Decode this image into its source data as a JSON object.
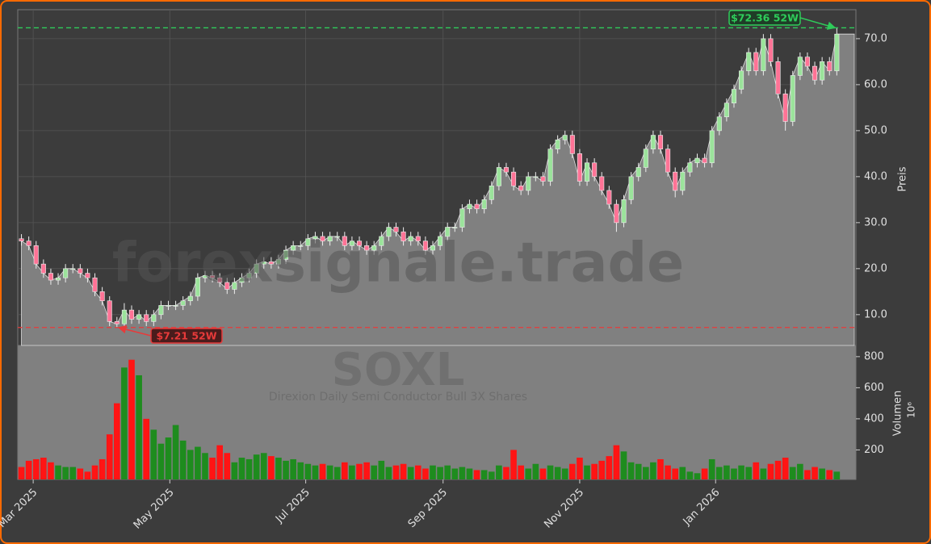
{
  "chart_data": {
    "type": "candlestick",
    "title": "SOXL",
    "subtitle": "Direxion Daily Semi Conductor Bull 3X Shares",
    "watermark": "forexsignale.trade",
    "ylabel": "Preis",
    "y2label": "Volumen",
    "y2scale": "10⁶",
    "open": [
      26.5,
      26,
      25,
      21,
      19,
      17.5,
      18,
      20,
      20,
      19,
      18,
      15,
      13,
      8.5,
      8,
      11,
      9,
      10,
      8.5,
      10,
      12,
      12,
      12,
      13,
      14,
      18,
      18.5,
      18,
      17,
      15.5,
      17,
      18,
      19,
      21,
      21.5,
      21,
      22,
      24,
      25,
      25,
      26.5,
      27,
      26,
      27,
      27,
      25,
      26,
      25,
      24,
      25,
      27,
      29,
      28,
      26,
      27,
      26,
      24,
      25,
      27,
      29,
      29,
      33,
      34,
      33,
      35,
      38,
      42,
      41,
      38,
      37,
      40,
      40,
      39,
      46,
      48,
      49,
      45,
      39,
      43,
      40,
      37,
      34,
      30,
      35,
      40,
      42,
      46,
      49,
      46,
      41,
      37,
      41,
      43,
      44,
      43,
      50,
      53,
      56,
      59,
      63,
      67,
      63,
      70,
      65,
      58,
      52,
      62,
      66,
      64,
      61,
      65,
      63
    ],
    "high": [
      27.5,
      27,
      26,
      22,
      20,
      19,
      21,
      21,
      21,
      20,
      19,
      16,
      14,
      9.5,
      12.5,
      12,
      11,
      11,
      11,
      13,
      13,
      13,
      14,
      15,
      19,
      19.5,
      19.5,
      19,
      18,
      18,
      19,
      20,
      22,
      22.5,
      22.5,
      23,
      25,
      26,
      26,
      27.5,
      28,
      28,
      28,
      28,
      28,
      27,
      27,
      26,
      26,
      28,
      30,
      30,
      29,
      28,
      28,
      27,
      26,
      28,
      30,
      30,
      34,
      35,
      35,
      36,
      39,
      43,
      43,
      42,
      39,
      41,
      41,
      41,
      47,
      49,
      50,
      50,
      46,
      44,
      44,
      41,
      38,
      35,
      36,
      41,
      43,
      47,
      50,
      50,
      47,
      42,
      42,
      44,
      45,
      45,
      51,
      54,
      57,
      60,
      64,
      68,
      68,
      71,
      71,
      66,
      59,
      63,
      67,
      67,
      65,
      66,
      66,
      72.36
    ],
    "low": [
      25,
      24,
      20,
      18,
      16.5,
      16.5,
      17,
      19,
      18,
      17,
      14,
      12,
      7.5,
      7.21,
      7.5,
      8,
      8,
      7.5,
      7.5,
      9,
      11,
      11,
      11,
      12,
      13,
      17,
      17,
      16,
      14.5,
      14.5,
      16,
      17,
      18,
      20,
      20,
      20,
      21,
      23,
      24,
      24,
      25.5,
      25,
      25,
      26,
      24,
      24,
      24,
      23,
      23,
      24,
      26,
      27,
      25,
      25,
      25,
      23,
      23,
      24,
      26,
      28,
      28,
      32,
      32,
      32,
      34,
      37,
      40,
      37,
      36,
      36,
      39,
      38,
      38,
      45,
      47,
      44,
      38,
      38,
      39,
      36,
      33,
      28,
      29,
      34,
      39,
      41,
      45,
      45,
      40,
      35.5,
      36,
      40,
      42,
      42,
      42,
      49,
      52,
      55,
      58,
      62,
      62,
      62,
      64,
      57,
      50,
      51,
      61,
      63,
      60,
      60,
      62,
      62
    ],
    "close": [
      26,
      25,
      21,
      19,
      17.5,
      18,
      20,
      20,
      19,
      18,
      15,
      13,
      8.5,
      8,
      11,
      9,
      10,
      8.5,
      10,
      12,
      12,
      12,
      13,
      14,
      18,
      18.5,
      18,
      17,
      15.5,
      17,
      18,
      19,
      21,
      21.5,
      21,
      22,
      24,
      25,
      25,
      26.5,
      27,
      26,
      27,
      27,
      25,
      26,
      25,
      24,
      25,
      27,
      29,
      28,
      26,
      27,
      26,
      24,
      25,
      27,
      29,
      29,
      33,
      34,
      33,
      35,
      38,
      42,
      41,
      38,
      37,
      40,
      40,
      39,
      46,
      48,
      49,
      45,
      39,
      43,
      40,
      37,
      34,
      30,
      35,
      40,
      42,
      46,
      49,
      46,
      41,
      37,
      41,
      43,
      44,
      43,
      50,
      53,
      56,
      59,
      63,
      67,
      63,
      70,
      65,
      58,
      52,
      62,
      66,
      64,
      61,
      65,
      63,
      71
    ],
    "volume": [
      90,
      130,
      140,
      150,
      120,
      100,
      90,
      90,
      80,
      60,
      100,
      140,
      300,
      500,
      730,
      780,
      680,
      400,
      330,
      240,
      280,
      360,
      260,
      200,
      220,
      180,
      150,
      230,
      180,
      120,
      150,
      140,
      170,
      180,
      160,
      150,
      130,
      140,
      120,
      110,
      100,
      110,
      100,
      90,
      120,
      100,
      110,
      120,
      100,
      130,
      90,
      100,
      110,
      90,
      100,
      80,
      100,
      90,
      100,
      80,
      90,
      80,
      70,
      70,
      60,
      100,
      90,
      200,
      100,
      80,
      110,
      80,
      100,
      90,
      80,
      110,
      150,
      100,
      110,
      130,
      160,
      230,
      190,
      120,
      110,
      90,
      120,
      140,
      100,
      80,
      90,
      60,
      50,
      80,
      140,
      90,
      100,
      80,
      100,
      90,
      120,
      80,
      110,
      130,
      150,
      90,
      110,
      70,
      90,
      80,
      70,
      60
    ],
    "xlim": [
      -0.5,
      113.6
    ],
    "xticks": [
      {
        "value": 1.6,
        "label": "Mar 2025"
      },
      {
        "value": 20.2,
        "label": "May 2025"
      },
      {
        "value": 38.7,
        "label": "Jul 2025"
      },
      {
        "value": 57.4,
        "label": "Sep 2025"
      },
      {
        "value": 76.0,
        "label": "Nov 2025"
      },
      {
        "value": 94.5,
        "label": "Jan 2026"
      }
    ],
    "ylim": [
      3.3,
      76.3
    ],
    "yticks": [
      {
        "value": 10,
        "label": "10.0"
      },
      {
        "value": 20,
        "label": "20.0"
      },
      {
        "value": 30,
        "label": "30.0"
      },
      {
        "value": 40,
        "label": "40.0"
      },
      {
        "value": 50,
        "label": "50.0"
      },
      {
        "value": 60,
        "label": "60.0"
      },
      {
        "value": 70,
        "label": "70.0"
      }
    ],
    "y2lim": [
      10,
      872
    ],
    "y2ticks": [
      200,
      400,
      600,
      800
    ],
    "grid": true,
    "colors": {
      "up": "#9be39b",
      "down": "#ff7396",
      "volume_up": "#1e8c1e",
      "volume_down": "#ff1414",
      "area": "#808080",
      "high_line": "#2ecc5a",
      "low_line": "#e83a3a"
    },
    "high_line": {
      "value": 72.36,
      "label": "$72.36 52W"
    },
    "low_line": {
      "value": 7.21,
      "label": "$7.21 52W"
    }
  }
}
